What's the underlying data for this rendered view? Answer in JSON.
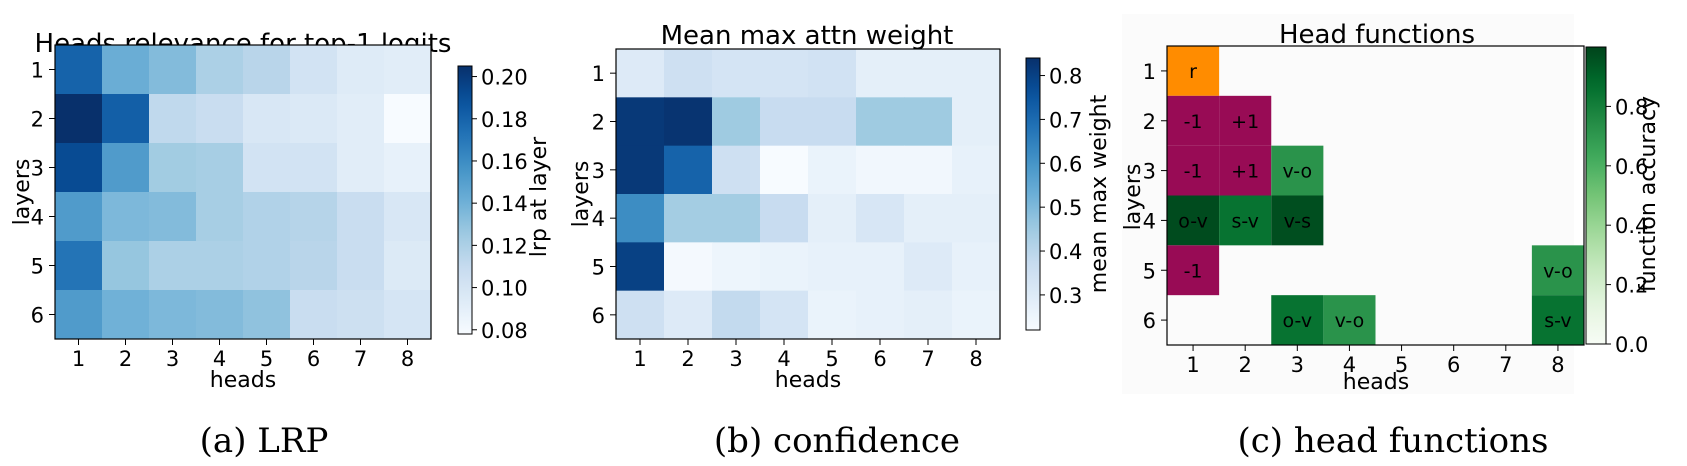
{
  "chart_data": [
    {
      "type": "heatmap",
      "title": "Heads relevance for top-1 logits",
      "xlabel": "heads",
      "ylabel": "layers",
      "x_categories": [
        "1",
        "2",
        "3",
        "4",
        "5",
        "6",
        "7",
        "8"
      ],
      "y_categories": [
        "1",
        "2",
        "3",
        "4",
        "5",
        "6"
      ],
      "values": [
        [
          0.18,
          0.142,
          0.134,
          0.12,
          0.115,
          0.102,
          0.094,
          0.092
        ],
        [
          0.205,
          0.182,
          0.112,
          0.108,
          0.098,
          0.096,
          0.092,
          0.078
        ],
        [
          0.192,
          0.152,
          0.124,
          0.122,
          0.102,
          0.102,
          0.092,
          0.088
        ],
        [
          0.152,
          0.136,
          0.134,
          0.122,
          0.118,
          0.116,
          0.108,
          0.098
        ],
        [
          0.172,
          0.128,
          0.12,
          0.12,
          0.118,
          0.115,
          0.108,
          0.095
        ],
        [
          0.152,
          0.14,
          0.136,
          0.134,
          0.13,
          0.108,
          0.105,
          0.1
        ]
      ],
      "colorbar": {
        "label": "lrp at layer",
        "range": [
          0.078,
          0.205
        ],
        "ticks": [
          "0.08",
          "0.10",
          "0.12",
          "0.14",
          "0.16",
          "0.18",
          "0.20"
        ],
        "tick_values": [
          0.08,
          0.1,
          0.12,
          0.14,
          0.16,
          0.18,
          0.2
        ],
        "colormap": "Blues"
      },
      "caption": "(a) LRP"
    },
    {
      "type": "heatmap",
      "title": "Mean max attn weight",
      "xlabel": "heads",
      "ylabel": "layers",
      "x_categories": [
        "1",
        "2",
        "3",
        "4",
        "5",
        "6",
        "7",
        "8"
      ],
      "y_categories": [
        "1",
        "2",
        "3",
        "4",
        "5",
        "6"
      ],
      "values": [
        [
          0.3,
          0.35,
          0.33,
          0.33,
          0.34,
          0.28,
          0.28,
          0.28
        ],
        [
          0.82,
          0.83,
          0.45,
          0.37,
          0.37,
          0.45,
          0.45,
          0.28
        ],
        [
          0.82,
          0.72,
          0.35,
          0.22,
          0.26,
          0.24,
          0.24,
          0.27
        ],
        [
          0.62,
          0.44,
          0.44,
          0.37,
          0.28,
          0.32,
          0.28,
          0.28
        ],
        [
          0.8,
          0.23,
          0.25,
          0.26,
          0.27,
          0.27,
          0.3,
          0.27
        ],
        [
          0.35,
          0.3,
          0.38,
          0.33,
          0.26,
          0.27,
          0.28,
          0.26
        ]
      ],
      "colorbar": {
        "label": "mean max weight",
        "range": [
          0.22,
          0.84
        ],
        "ticks": [
          "0.3",
          "0.4",
          "0.5",
          "0.6",
          "0.7",
          "0.8"
        ],
        "tick_values": [
          0.3,
          0.4,
          0.5,
          0.6,
          0.7,
          0.8
        ],
        "colormap": "Blues"
      },
      "caption": "(b) confidence"
    },
    {
      "type": "heatmap",
      "title": "Head functions",
      "xlabel": "heads",
      "ylabel": "layers",
      "x_categories": [
        "1",
        "2",
        "3",
        "4",
        "5",
        "6",
        "7",
        "8"
      ],
      "y_categories": [
        "1",
        "2",
        "3",
        "4",
        "5",
        "6"
      ],
      "cells": [
        {
          "layer": 1,
          "head": 1,
          "label": "r",
          "color": "#ff8c00"
        },
        {
          "layer": 2,
          "head": 1,
          "label": "-1",
          "color": "#980b55"
        },
        {
          "layer": 2,
          "head": 2,
          "label": "+1",
          "color": "#980b55"
        },
        {
          "layer": 3,
          "head": 1,
          "label": "-1",
          "color": "#980b55"
        },
        {
          "layer": 3,
          "head": 2,
          "label": "+1",
          "color": "#980b55"
        },
        {
          "layer": 3,
          "head": 3,
          "label": "v-o",
          "accuracy": 0.72
        },
        {
          "layer": 4,
          "head": 1,
          "label": "o-v",
          "accuracy": 0.98
        },
        {
          "layer": 4,
          "head": 2,
          "label": "s-v",
          "accuracy": 0.85
        },
        {
          "layer": 4,
          "head": 3,
          "label": "v-s",
          "accuracy": 0.97
        },
        {
          "layer": 5,
          "head": 1,
          "label": "-1",
          "color": "#980b55"
        },
        {
          "layer": 5,
          "head": 8,
          "label": "v-o",
          "accuracy": 0.72
        },
        {
          "layer": 6,
          "head": 3,
          "label": "o-v",
          "accuracy": 0.85
        },
        {
          "layer": 6,
          "head": 4,
          "label": "v-o",
          "accuracy": 0.72
        },
        {
          "layer": 6,
          "head": 8,
          "label": "s-v",
          "accuracy": 0.85
        }
      ],
      "colorbar": {
        "label": "function accuracy",
        "range": [
          0.0,
          1.0
        ],
        "ticks": [
          "0.0",
          "0.2",
          "0.4",
          "0.6",
          "0.8"
        ],
        "tick_values": [
          0.0,
          0.2,
          0.4,
          0.6,
          0.8
        ],
        "colormap": "Greens"
      },
      "caption": "(c) head functions"
    }
  ]
}
